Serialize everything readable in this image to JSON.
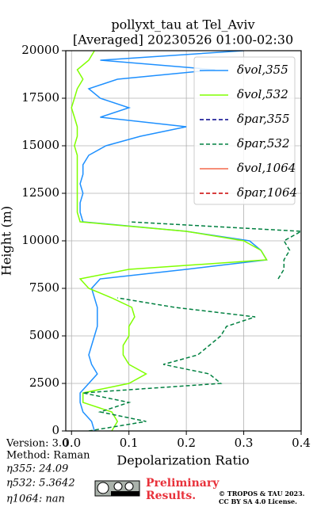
{
  "chart_data": {
    "type": "line",
    "title": [
      "pollyxt_tau at Tel_Aviv",
      "[Averaged] 20230526 01:00-02:30"
    ],
    "xlabel": "Depolarization Ratio",
    "ylabel": "Height (m)",
    "heights": [
      0,
      500,
      1000,
      1500,
      2000,
      2500,
      3000,
      3500,
      4000,
      4500,
      5000,
      5500,
      6000,
      6500,
      7000,
      7500,
      8000,
      8500,
      9000,
      9500,
      10000,
      10500,
      11000,
      11500,
      12000,
      12500,
      13000,
      13500,
      14000,
      14500,
      15000,
      15500,
      16000,
      16500,
      17000,
      17500,
      18000,
      18500,
      19000,
      19500,
      20000
    ],
    "xlim": [
      -0.01,
      0.4
    ],
    "ylim": [
      0,
      20000
    ],
    "xticks": [
      {
        "value": 0,
        "label": "0.0"
      },
      0.1,
      0.2,
      0.3,
      0.4
    ],
    "yticks": [
      0,
      2500,
      5000,
      7500,
      10000,
      12500,
      15000,
      17500,
      20000
    ],
    "grid": true,
    "legend": "upper right",
    "series": [
      {
        "name": "δvol,355",
        "color": "#1e90ff",
        "linestyle": "-",
        "values": [
          0.04,
          0.035,
          0.02,
          0.015,
          0.015,
          0.03,
          0.045,
          0.035,
          0.03,
          0.035,
          0.04,
          0.045,
          0.045,
          0.045,
          0.04,
          0.035,
          0.05,
          0.2,
          0.34,
          0.33,
          0.31,
          0.2,
          0.02,
          0.015,
          0.015,
          0.02,
          0.015,
          0.02,
          0.02,
          0.03,
          0.06,
          0.12,
          0.2,
          0.05,
          0.1,
          0.05,
          0.03,
          0.08,
          0.25,
          0.05,
          0.3
        ]
      },
      {
        "name": "δvol,532",
        "color": "#80ff00",
        "linestyle": "-",
        "values": [
          0.07,
          0.08,
          0.07,
          0.02,
          0.02,
          0.1,
          0.13,
          0.1,
          0.09,
          0.09,
          0.1,
          0.1,
          0.11,
          0.105,
          0.07,
          0.03,
          0.015,
          0.1,
          0.34,
          0.33,
          0.3,
          0.2,
          0.015,
          0.01,
          0.01,
          0.01,
          0.01,
          0.01,
          0.01,
          0.01,
          0.005,
          0.01,
          0.01,
          0.005,
          0.0,
          0.005,
          0.01,
          0.02,
          0.01,
          0.03,
          0.04
        ]
      },
      {
        "name": "δpar,355",
        "color": "#00008b",
        "linestyle": "--",
        "values": [
          null,
          null,
          null,
          null,
          null,
          null,
          null,
          null,
          null,
          null,
          null,
          null,
          null,
          null,
          null,
          null,
          null,
          null,
          null,
          null,
          null,
          null,
          null,
          null,
          null,
          null,
          null,
          null,
          null,
          null,
          null,
          null,
          null,
          null,
          null,
          null,
          null,
          null,
          null,
          null,
          null
        ]
      },
      {
        "name": "δpar,532",
        "color": "#008040",
        "linestyle": "--",
        "values": [
          0.03,
          0.13,
          0.05,
          0.1,
          0.02,
          0.26,
          0.24,
          0.16,
          0.22,
          0.24,
          0.26,
          0.27,
          0.32,
          0.18,
          0.08,
          null,
          0.36,
          0.37,
          0.37,
          0.38,
          0.37,
          0.4,
          0.1,
          null,
          null,
          null,
          null,
          null,
          null,
          null,
          null,
          null,
          null,
          null,
          null,
          null,
          null,
          null,
          null,
          null,
          null
        ]
      },
      {
        "name": "δvol,1064",
        "color": "#f4694b",
        "linestyle": "-",
        "values": [
          null,
          null,
          null,
          null,
          null,
          null,
          null,
          null,
          null,
          null,
          null,
          null,
          null,
          null,
          null,
          null,
          null,
          null,
          null,
          null,
          null,
          null,
          null,
          null,
          null,
          null,
          null,
          null,
          null,
          null,
          null,
          null,
          null,
          null,
          null,
          null,
          null,
          null,
          null,
          null,
          null
        ]
      },
      {
        "name": "δpar,1064",
        "color": "#cc0000",
        "linestyle": "--",
        "values": [
          null,
          null,
          null,
          null,
          null,
          null,
          null,
          null,
          null,
          null,
          null,
          null,
          null,
          null,
          null,
          null,
          null,
          null,
          null,
          null,
          null,
          null,
          null,
          null,
          null,
          null,
          null,
          null,
          null,
          null,
          null,
          null,
          null,
          null,
          null,
          null,
          null,
          null,
          null,
          null,
          null
        ]
      }
    ]
  },
  "footer": {
    "info": [
      "Version: 3.0",
      "Method: Raman",
      "η355:  24.09",
      "η532: 5.3642",
      "η1064:    nan"
    ],
    "preliminary": [
      "Preliminary",
      "Results."
    ],
    "copyright": [
      "© TROPOS & TAU 2023.",
      "CC BY SA 4.0 License."
    ]
  }
}
